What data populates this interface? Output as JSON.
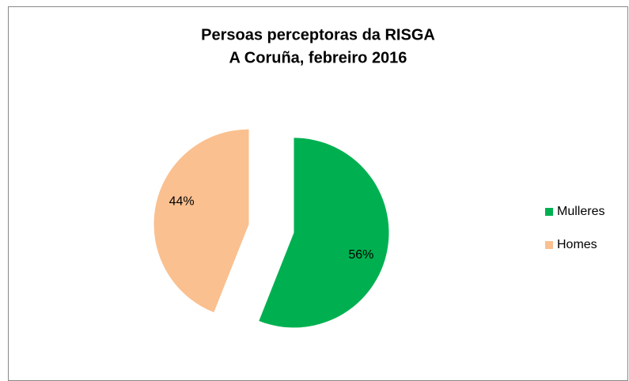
{
  "chart_data": {
    "type": "pie",
    "title": [
      "Persoas perceptoras da RISGA",
      "A Coruña, febreiro 2016"
    ],
    "categories": [
      "Mulleres",
      "Homes"
    ],
    "values": [
      56,
      44
    ],
    "value_labels": [
      "56%",
      "44%"
    ],
    "colors": [
      "#00b050",
      "#fac090"
    ],
    "legend": "right"
  }
}
